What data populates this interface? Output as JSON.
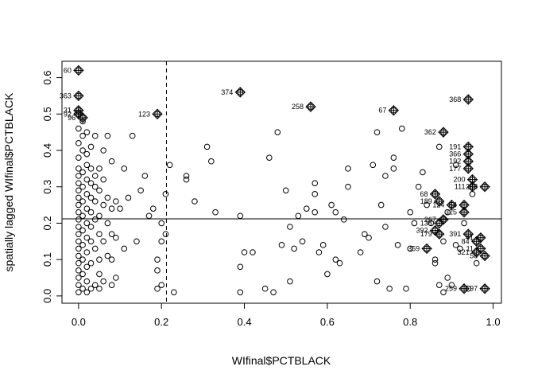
{
  "chart_data": {
    "type": "scatter",
    "title": "",
    "xlabel": "WIfinal$PCTBLACK",
    "ylabel": "spatially lagged WIfinal$PCTBLACK",
    "xlim": [
      -0.04,
      1.02
    ],
    "ylim": [
      -0.02,
      0.645
    ],
    "xticks": [
      0.0,
      0.2,
      0.4,
      0.6,
      0.8,
      1.0
    ],
    "xtick_labels": [
      "0.0",
      "0.2",
      "0.4",
      "0.6",
      "0.8",
      "1.0"
    ],
    "yticks": [
      0.0,
      0.1,
      0.2,
      0.3,
      0.4,
      0.5,
      0.6
    ],
    "ytick_labels": [
      "0.0",
      "0.1",
      "0.2",
      "0.3",
      "0.4",
      "0.5",
      "0.6"
    ],
    "mean_x": 0.212,
    "mean_y": 0.212,
    "grid": false,
    "legend": "none",
    "regular_points": [
      [
        0.0,
        0.01
      ],
      [
        0.0,
        0.03
      ],
      [
        0.0,
        0.05
      ],
      [
        0.0,
        0.07
      ],
      [
        0.0,
        0.09
      ],
      [
        0.0,
        0.11
      ],
      [
        0.0,
        0.13
      ],
      [
        0.0,
        0.15
      ],
      [
        0.0,
        0.17
      ],
      [
        0.0,
        0.19
      ],
      [
        0.0,
        0.21
      ],
      [
        0.0,
        0.23
      ],
      [
        0.0,
        0.25
      ],
      [
        0.0,
        0.27
      ],
      [
        0.0,
        0.29
      ],
      [
        0.0,
        0.31
      ],
      [
        0.0,
        0.33
      ],
      [
        0.0,
        0.35
      ],
      [
        0.0,
        0.38
      ],
      [
        0.0,
        0.42
      ],
      [
        0.0,
        0.46
      ],
      [
        0.01,
        0.02
      ],
      [
        0.01,
        0.06
      ],
      [
        0.01,
        0.1
      ],
      [
        0.01,
        0.14
      ],
      [
        0.01,
        0.18
      ],
      [
        0.01,
        0.22
      ],
      [
        0.01,
        0.26
      ],
      [
        0.01,
        0.3
      ],
      [
        0.01,
        0.34
      ],
      [
        0.01,
        0.4
      ],
      [
        0.01,
        0.44
      ],
      [
        0.01,
        0.48
      ],
      [
        0.02,
        0.01
      ],
      [
        0.02,
        0.04
      ],
      [
        0.02,
        0.08
      ],
      [
        0.02,
        0.12
      ],
      [
        0.02,
        0.16
      ],
      [
        0.02,
        0.2
      ],
      [
        0.02,
        0.24
      ],
      [
        0.02,
        0.28
      ],
      [
        0.02,
        0.32
      ],
      [
        0.02,
        0.36
      ],
      [
        0.02,
        0.39
      ],
      [
        0.02,
        0.45
      ],
      [
        0.03,
        0.02
      ],
      [
        0.03,
        0.09
      ],
      [
        0.03,
        0.15
      ],
      [
        0.03,
        0.19
      ],
      [
        0.03,
        0.23
      ],
      [
        0.03,
        0.27
      ],
      [
        0.03,
        0.31
      ],
      [
        0.03,
        0.35
      ],
      [
        0.03,
        0.41
      ],
      [
        0.04,
        0.03
      ],
      [
        0.04,
        0.13
      ],
      [
        0.04,
        0.21
      ],
      [
        0.04,
        0.26
      ],
      [
        0.04,
        0.3
      ],
      [
        0.04,
        0.33
      ],
      [
        0.04,
        0.44
      ],
      [
        0.05,
        0.02
      ],
      [
        0.05,
        0.06
      ],
      [
        0.05,
        0.1
      ],
      [
        0.05,
        0.17
      ],
      [
        0.05,
        0.22
      ],
      [
        0.05,
        0.29
      ],
      [
        0.05,
        0.35
      ],
      [
        0.06,
        0.04
      ],
      [
        0.06,
        0.15
      ],
      [
        0.06,
        0.25
      ],
      [
        0.06,
        0.32
      ],
      [
        0.06,
        0.4
      ],
      [
        0.07,
        0.11
      ],
      [
        0.07,
        0.2
      ],
      [
        0.07,
        0.27
      ],
      [
        0.07,
        0.44
      ],
      [
        0.08,
        0.03
      ],
      [
        0.08,
        0.1
      ],
      [
        0.08,
        0.17
      ],
      [
        0.08,
        0.24
      ],
      [
        0.08,
        0.37
      ],
      [
        0.09,
        0.05
      ],
      [
        0.09,
        0.16
      ],
      [
        0.09,
        0.26
      ],
      [
        0.1,
        0.24
      ],
      [
        0.11,
        0.13
      ],
      [
        0.11,
        0.35
      ],
      [
        0.12,
        0.27
      ],
      [
        0.13,
        0.44
      ],
      [
        0.14,
        0.15
      ],
      [
        0.15,
        0.29
      ],
      [
        0.16,
        0.33
      ],
      [
        0.17,
        0.22
      ],
      [
        0.18,
        0.24
      ],
      [
        0.19,
        0.02
      ],
      [
        0.19,
        0.07
      ],
      [
        0.19,
        0.1
      ],
      [
        0.2,
        0.03
      ],
      [
        0.2,
        0.15
      ],
      [
        0.2,
        0.2
      ],
      [
        0.21,
        0.28
      ],
      [
        0.21,
        0.17
      ],
      [
        0.22,
        0.36
      ],
      [
        0.23,
        0.01
      ],
      [
        0.26,
        0.32
      ],
      [
        0.26,
        0.33
      ],
      [
        0.28,
        0.26
      ],
      [
        0.31,
        0.41
      ],
      [
        0.32,
        0.37
      ],
      [
        0.33,
        0.23
      ],
      [
        0.39,
        0.01
      ],
      [
        0.39,
        0.08
      ],
      [
        0.39,
        0.22
      ],
      [
        0.4,
        0.12
      ],
      [
        0.42,
        0.12
      ],
      [
        0.45,
        0.02
      ],
      [
        0.46,
        0.38
      ],
      [
        0.47,
        0.01
      ],
      [
        0.48,
        0.45
      ],
      [
        0.49,
        0.14
      ],
      [
        0.5,
        0.29
      ],
      [
        0.51,
        0.04
      ],
      [
        0.51,
        0.19
      ],
      [
        0.52,
        0.13
      ],
      [
        0.53,
        0.22
      ],
      [
        0.54,
        0.15
      ],
      [
        0.55,
        0.24
      ],
      [
        0.57,
        0.31
      ],
      [
        0.57,
        0.28
      ],
      [
        0.57,
        0.23
      ],
      [
        0.58,
        0.12
      ],
      [
        0.59,
        0.14
      ],
      [
        0.6,
        0.06
      ],
      [
        0.61,
        0.25
      ],
      [
        0.62,
        0.23
      ],
      [
        0.62,
        0.1
      ],
      [
        0.63,
        0.09
      ],
      [
        0.64,
        0.21
      ],
      [
        0.65,
        0.35
      ],
      [
        0.65,
        0.3
      ],
      [
        0.68,
        0.12
      ],
      [
        0.69,
        0.17
      ],
      [
        0.7,
        0.16
      ],
      [
        0.71,
        0.36
      ],
      [
        0.72,
        0.45
      ],
      [
        0.72,
        0.04
      ],
      [
        0.73,
        0.25
      ],
      [
        0.74,
        0.19
      ],
      [
        0.74,
        0.33
      ],
      [
        0.75,
        0.02
      ],
      [
        0.76,
        0.38
      ],
      [
        0.76,
        0.35
      ],
      [
        0.77,
        0.14
      ],
      [
        0.78,
        0.46
      ],
      [
        0.79,
        0.02
      ],
      [
        0.8,
        0.23
      ],
      [
        0.8,
        0.13
      ],
      [
        0.81,
        0.2
      ],
      [
        0.82,
        0.3
      ],
      [
        0.83,
        0.34
      ],
      [
        0.84,
        0.25
      ],
      [
        0.85,
        0.2
      ],
      [
        0.86,
        0.09
      ],
      [
        0.86,
        0.1
      ],
      [
        0.87,
        0.41
      ],
      [
        0.87,
        0.03
      ],
      [
        0.88,
        0.01
      ],
      [
        0.88,
        0.15
      ],
      [
        0.89,
        0.05
      ],
      [
        0.89,
        0.23
      ],
      [
        0.9,
        0.03
      ],
      [
        0.91,
        0.36
      ],
      [
        0.91,
        0.14
      ],
      [
        0.92,
        0.13
      ],
      [
        0.93,
        0.2
      ],
      [
        0.94,
        0.02
      ],
      [
        0.95,
        0.28
      ],
      [
        0.96,
        0.09
      ]
    ],
    "influential_points": [
      {
        "label": "60",
        "x": 0.0,
        "y": 0.62
      },
      {
        "label": "363",
        "x": 0.0,
        "y": 0.55
      },
      {
        "label": "31",
        "x": 0.0,
        "y": 0.51
      },
      {
        "label": "92",
        "x": 0.0,
        "y": 0.5
      },
      {
        "label": "96",
        "x": 0.01,
        "y": 0.49
      },
      {
        "label": "123",
        "x": 0.19,
        "y": 0.5
      },
      {
        "label": "374",
        "x": 0.39,
        "y": 0.56
      },
      {
        "label": "258",
        "x": 0.56,
        "y": 0.52
      },
      {
        "label": "67",
        "x": 0.76,
        "y": 0.51
      },
      {
        "label": "368",
        "x": 0.94,
        "y": 0.54
      },
      {
        "label": "362",
        "x": 0.88,
        "y": 0.45
      },
      {
        "label": "191",
        "x": 0.94,
        "y": 0.41
      },
      {
        "label": "366",
        "x": 0.94,
        "y": 0.39
      },
      {
        "label": "192",
        "x": 0.94,
        "y": 0.37
      },
      {
        "label": "177",
        "x": 0.94,
        "y": 0.35
      },
      {
        "label": "200",
        "x": 0.95,
        "y": 0.32
      },
      {
        "label": "111",
        "x": 0.95,
        "y": 0.3
      },
      {
        "label": "283",
        "x": 0.98,
        "y": 0.3
      },
      {
        "label": "68",
        "x": 0.86,
        "y": 0.28
      },
      {
        "label": "189",
        "x": 0.87,
        "y": 0.26
      },
      {
        "label": "124",
        "x": 0.9,
        "y": 0.25
      },
      {
        "label": "54",
        "x": 0.93,
        "y": 0.25
      },
      {
        "label": "325",
        "x": 0.93,
        "y": 0.23
      },
      {
        "label": "267",
        "x": 0.88,
        "y": 0.21
      },
      {
        "label": "138",
        "x": 0.87,
        "y": 0.2
      },
      {
        "label": "392",
        "x": 0.86,
        "y": 0.18
      },
      {
        "label": "179",
        "x": 0.87,
        "y": 0.17
      },
      {
        "label": "391",
        "x": 0.94,
        "y": 0.17
      },
      {
        "label": "41",
        "x": 0.97,
        "y": 0.16
      },
      {
        "label": "84",
        "x": 0.96,
        "y": 0.15
      },
      {
        "label": "359",
        "x": 0.84,
        "y": 0.13
      },
      {
        "label": "11",
        "x": 0.97,
        "y": 0.13
      },
      {
        "label": "321",
        "x": 0.96,
        "y": 0.12
      },
      {
        "label": "58",
        "x": 0.98,
        "y": 0.11
      },
      {
        "label": "259",
        "x": 0.93,
        "y": 0.02
      },
      {
        "label": "97",
        "x": 0.98,
        "y": 0.02
      }
    ]
  }
}
